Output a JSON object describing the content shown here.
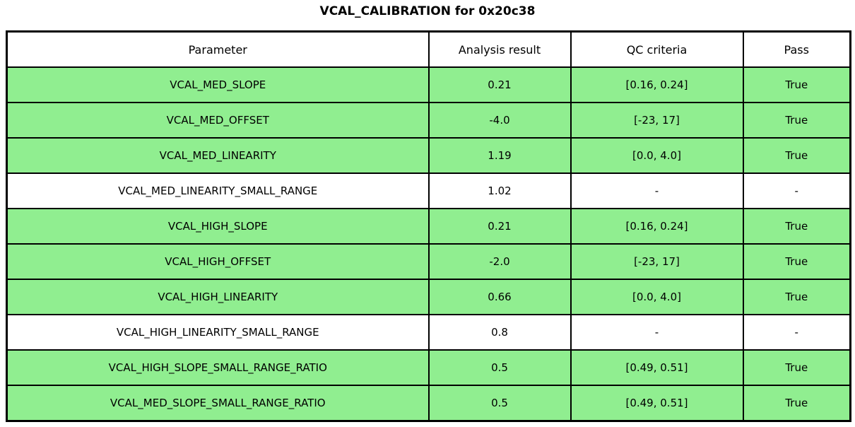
{
  "title": "VCAL_CALIBRATION for 0x20c38",
  "colors": {
    "pass_row_bg": "#90EE90",
    "neutral_row_bg": "#FFFFFF",
    "border": "#000000",
    "text": "#000000"
  },
  "chart_data": {
    "type": "table",
    "title": "VCAL_CALIBRATION for 0x20c38",
    "headers": [
      "Parameter",
      "Analysis result",
      "QC criteria",
      "Pass"
    ],
    "rows": [
      {
        "parameter": "VCAL_MED_SLOPE",
        "analysis_result": "0.21",
        "qc_criteria": "[0.16, 0.24]",
        "pass": "True",
        "highlight": true
      },
      {
        "parameter": "VCAL_MED_OFFSET",
        "analysis_result": "-4.0",
        "qc_criteria": "[-23, 17]",
        "pass": "True",
        "highlight": true
      },
      {
        "parameter": "VCAL_MED_LINEARITY",
        "analysis_result": "1.19",
        "qc_criteria": "[0.0, 4.0]",
        "pass": "True",
        "highlight": true
      },
      {
        "parameter": "VCAL_MED_LINEARITY_SMALL_RANGE",
        "analysis_result": "1.02",
        "qc_criteria": "-",
        "pass": "-",
        "highlight": false
      },
      {
        "parameter": "VCAL_HIGH_SLOPE",
        "analysis_result": "0.21",
        "qc_criteria": "[0.16, 0.24]",
        "pass": "True",
        "highlight": true
      },
      {
        "parameter": "VCAL_HIGH_OFFSET",
        "analysis_result": "-2.0",
        "qc_criteria": "[-23, 17]",
        "pass": "True",
        "highlight": true
      },
      {
        "parameter": "VCAL_HIGH_LINEARITY",
        "analysis_result": "0.66",
        "qc_criteria": "[0.0, 4.0]",
        "pass": "True",
        "highlight": true
      },
      {
        "parameter": "VCAL_HIGH_LINEARITY_SMALL_RANGE",
        "analysis_result": "0.8",
        "qc_criteria": "-",
        "pass": "-",
        "highlight": false
      },
      {
        "parameter": "VCAL_HIGH_SLOPE_SMALL_RANGE_RATIO",
        "analysis_result": "0.5",
        "qc_criteria": "[0.49, 0.51]",
        "pass": "True",
        "highlight": true
      },
      {
        "parameter": "VCAL_MED_SLOPE_SMALL_RANGE_RATIO",
        "analysis_result": "0.5",
        "qc_criteria": "[0.49, 0.51]",
        "pass": "True",
        "highlight": true
      }
    ],
    "layout_hints": {
      "grid": true,
      "highlight_meaning": "green row = QC check passed, white row = informational (no QC criteria)"
    }
  }
}
